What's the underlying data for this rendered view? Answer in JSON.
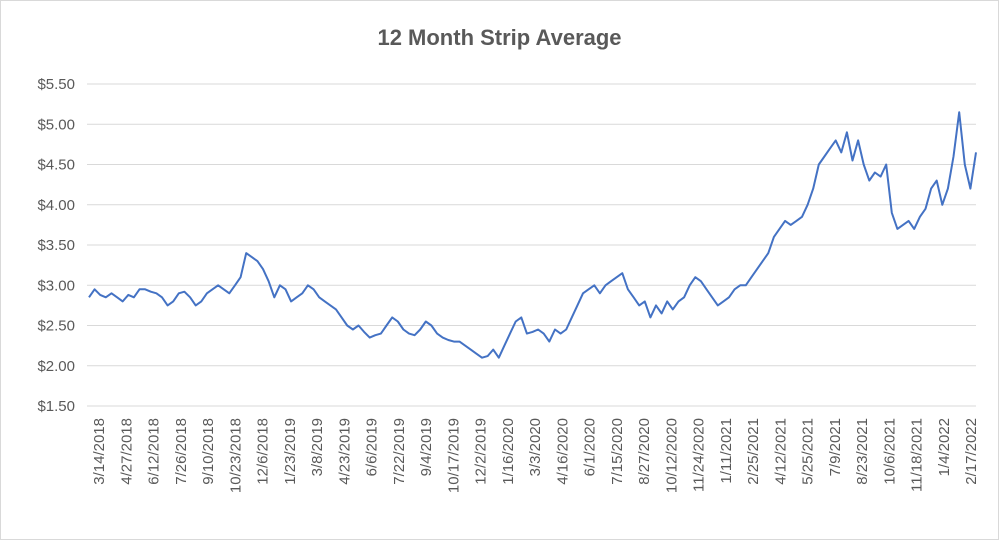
{
  "chart_data": {
    "type": "line",
    "title": "12 Month Strip Average",
    "xlabel": "",
    "ylabel": "",
    "ylim": [
      1.5,
      5.5
    ],
    "y_ticks": [
      "$1.50",
      "$2.00",
      "$2.50",
      "$3.00",
      "$3.50",
      "$4.00",
      "$4.50",
      "$5.00",
      "$5.50"
    ],
    "x_ticks": [
      "3/14/2018",
      "4/27/2018",
      "6/12/2018",
      "7/26/2018",
      "9/10/2018",
      "10/23/2018",
      "12/6/2018",
      "1/23/2019",
      "3/8/2019",
      "4/23/2019",
      "6/6/2019",
      "7/22/2019",
      "9/4/2019",
      "10/17/2019",
      "12/2/2019",
      "1/16/2020",
      "3/3/2020",
      "4/16/2020",
      "6/1/2020",
      "7/15/2020",
      "8/27/2020",
      "10/12/2020",
      "11/24/2020",
      "1/11/2021",
      "2/25/2021",
      "4/12/2021",
      "5/25/2021",
      "7/9/2021",
      "8/23/2021",
      "10/6/2021",
      "11/18/2021",
      "1/4/2022",
      "2/17/2022"
    ],
    "grid": true,
    "legend": "none",
    "line_color": "#4472c4",
    "series": [
      {
        "values": [
          2.85,
          2.95,
          2.88,
          2.85,
          2.9,
          2.85,
          2.8,
          2.88,
          2.85,
          2.95,
          2.95,
          2.92,
          2.9,
          2.85,
          2.75,
          2.8,
          2.9,
          2.92,
          2.85,
          2.75,
          2.8,
          2.9,
          2.95,
          3.0,
          2.95,
          2.9,
          3.0,
          3.1,
          3.4,
          3.35,
          3.3,
          3.2,
          3.05,
          2.85,
          3.0,
          2.95,
          2.8,
          2.85,
          2.9,
          3.0,
          2.95,
          2.85,
          2.8,
          2.75,
          2.7,
          2.6,
          2.5,
          2.45,
          2.5,
          2.42,
          2.35,
          2.38,
          2.4,
          2.5,
          2.6,
          2.55,
          2.45,
          2.4,
          2.38,
          2.45,
          2.55,
          2.5,
          2.4,
          2.35,
          2.32,
          2.3,
          2.3,
          2.25,
          2.2,
          2.15,
          2.1,
          2.12,
          2.2,
          2.1,
          2.25,
          2.4,
          2.55,
          2.6,
          2.4,
          2.42,
          2.45,
          2.4,
          2.3,
          2.45,
          2.4,
          2.45,
          2.6,
          2.75,
          2.9,
          2.95,
          3.0,
          2.9,
          3.0,
          3.05,
          3.1,
          3.15,
          2.95,
          2.85,
          2.75,
          2.8,
          2.6,
          2.75,
          2.65,
          2.8,
          2.7,
          2.8,
          2.85,
          3.0,
          3.1,
          3.05,
          2.95,
          2.85,
          2.75,
          2.8,
          2.85,
          2.95,
          3.0,
          3.0,
          3.1,
          3.2,
          3.3,
          3.4,
          3.6,
          3.7,
          3.8,
          3.75,
          3.8,
          3.85,
          4.0,
          4.2,
          4.5,
          4.6,
          4.7,
          4.8,
          4.65,
          4.9,
          4.55,
          4.8,
          4.5,
          4.3,
          4.4,
          4.35,
          4.5,
          3.9,
          3.7,
          3.75,
          3.8,
          3.7,
          3.85,
          3.95,
          4.2,
          4.3,
          4.0,
          4.2,
          4.6,
          5.15,
          4.5,
          4.2,
          4.65
        ]
      }
    ]
  }
}
